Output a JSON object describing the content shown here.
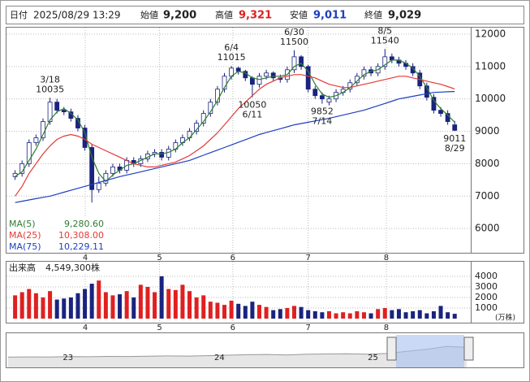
{
  "chart_data": {
    "type": "candlestick",
    "header": {
      "date_label": "日付",
      "date": "2025/08/29 13:29",
      "open_label": "始値",
      "open": "9,200",
      "high_label": "高値",
      "high": "9,321",
      "low_label": "安値",
      "low": "9,011",
      "close_label": "終値",
      "close": "9,029"
    },
    "xlim": [
      -1,
      65.3
    ],
    "xticks": [
      {
        "value": 10.05,
        "label": "4"
      },
      {
        "value": 20.7,
        "label": "5"
      },
      {
        "value": 31.2,
        "label": "6"
      },
      {
        "value": 42,
        "label": "7"
      },
      {
        "value": 53.2,
        "label": "8"
      }
    ],
    "ylim": [
      5250,
      12200
    ],
    "yticks": [
      6000,
      7000,
      8000,
      9000,
      10000,
      11000,
      12000
    ],
    "open": [
      7600,
      7700,
      8000,
      8650,
      8800,
      9300,
      9900,
      9650,
      9600,
      9400,
      9100,
      8500,
      7200,
      7400,
      7700,
      7900,
      7800,
      8100,
      8000,
      8150,
      8300,
      8350,
      8200,
      8450,
      8650,
      8800,
      9000,
      9250,
      9550,
      9900,
      10300,
      10700,
      10950,
      10850,
      10650,
      10450,
      10700,
      10800,
      10650,
      10600,
      10900,
      11300,
      11000,
      10300,
      10100,
      9900,
      10000,
      10200,
      10300,
      10500,
      10700,
      10900,
      10800,
      11000,
      11300,
      11200,
      11100,
      11000,
      10800,
      10400,
      10050,
      9650,
      9550,
      9200
    ],
    "high": [
      7800,
      8100,
      8750,
      8900,
      9400,
      10035,
      10000,
      9750,
      9700,
      9500,
      9200,
      8600,
      7600,
      7800,
      8000,
      8000,
      8200,
      8200,
      8250,
      8400,
      8450,
      8450,
      8550,
      8750,
      8900,
      9100,
      9350,
      9650,
      10000,
      10400,
      10800,
      11015,
      11000,
      10900,
      10700,
      10800,
      10900,
      10850,
      10750,
      11000,
      11500,
      11350,
      11050,
      10400,
      10200,
      10100,
      10300,
      10400,
      10600,
      10800,
      11000,
      11000,
      11100,
      11540,
      11400,
      11300,
      11200,
      11100,
      10900,
      10500,
      10150,
      9750,
      9650,
      9321
    ],
    "low": [
      7500,
      7600,
      7900,
      8550,
      8700,
      9200,
      9550,
      9500,
      9300,
      9000,
      8400,
      6800,
      7100,
      7300,
      7600,
      7700,
      7700,
      7900,
      7900,
      8050,
      8200,
      8100,
      8100,
      8350,
      8550,
      8700,
      8900,
      9150,
      9450,
      9800,
      10200,
      10600,
      10750,
      10550,
      10050,
      10350,
      10600,
      10550,
      10500,
      10500,
      10800,
      10900,
      10200,
      10000,
      9852,
      9800,
      9900,
      10100,
      10200,
      10400,
      10600,
      10700,
      10700,
      10900,
      11100,
      11000,
      10900,
      10700,
      10300,
      9950,
      9550,
      9450,
      9200,
      9011
    ],
    "close": [
      7700,
      8000,
      8650,
      8800,
      9300,
      9900,
      9650,
      9600,
      9400,
      9100,
      8500,
      7200,
      7400,
      7700,
      7900,
      7800,
      8100,
      8000,
      8150,
      8300,
      8350,
      8200,
      8450,
      8650,
      8800,
      9000,
      9250,
      9550,
      9900,
      10300,
      10700,
      10950,
      10850,
      10650,
      10450,
      10700,
      10800,
      10650,
      10600,
      10900,
      11300,
      11000,
      10300,
      10100,
      10000,
      10000,
      10200,
      10300,
      10500,
      10700,
      10900,
      10800,
      11000,
      11300,
      11200,
      11100,
      11000,
      10800,
      10400,
      10050,
      9650,
      9550,
      9300,
      9029
    ],
    "up_color": "#ffffff",
    "down_color": "#1a237e",
    "outline_color": "#1a237e",
    "series": [
      {
        "name": "MA(5)",
        "color": "#2e7d32",
        "current": {
          "value": 9280.6,
          "label": "9,280.60"
        },
        "values": [
          7600,
          7750,
          8100,
          8450,
          8900,
          9350,
          9600,
          9700,
          9550,
          9350,
          8950,
          8200,
          7700,
          7450,
          7650,
          7800,
          7950,
          8000,
          8100,
          8200,
          8300,
          8300,
          8350,
          8450,
          8650,
          8800,
          9050,
          9300,
          9600,
          9950,
          10350,
          10700,
          10850,
          10800,
          10650,
          10600,
          10650,
          10700,
          10700,
          10750,
          11000,
          11100,
          10850,
          10450,
          10150,
          10050,
          10100,
          10200,
          10350,
          10550,
          10750,
          10850,
          10900,
          11050,
          11200,
          11200,
          11100,
          10950,
          10700,
          10350,
          9950,
          9700,
          9500,
          9280.6
        ]
      },
      {
        "name": "MA(25)",
        "color": "#e53935",
        "current": {
          "value": 10308,
          "label": "10,308.00"
        },
        "values": [
          7000,
          7300,
          7700,
          8000,
          8300,
          8550,
          8750,
          8850,
          8900,
          8850,
          8750,
          8600,
          8500,
          8400,
          8300,
          8200,
          8100,
          8000,
          7950,
          7900,
          7900,
          7950,
          8000,
          8050,
          8150,
          8250,
          8400,
          8550,
          8750,
          8950,
          9200,
          9450,
          9700,
          9900,
          10100,
          10300,
          10450,
          10550,
          10650,
          10700,
          10750,
          10750,
          10700,
          10650,
          10550,
          10450,
          10400,
          10350,
          10350,
          10400,
          10450,
          10500,
          10550,
          10600,
          10650,
          10700,
          10700,
          10650,
          10600,
          10550,
          10500,
          10450,
          10380,
          10308
        ]
      },
      {
        "name": "MA(75)",
        "color": "#1e3fbf",
        "current": {
          "value": 10229.11,
          "label": "10,229.11"
        },
        "values": [
          6800,
          6840,
          6880,
          6920,
          6960,
          7000,
          7060,
          7120,
          7180,
          7240,
          7300,
          7360,
          7420,
          7480,
          7540,
          7600,
          7650,
          7700,
          7750,
          7800,
          7850,
          7900,
          7950,
          8000,
          8050,
          8100,
          8180,
          8260,
          8340,
          8420,
          8500,
          8580,
          8660,
          8740,
          8820,
          8900,
          8960,
          9020,
          9080,
          9140,
          9200,
          9240,
          9280,
          9320,
          9360,
          9400,
          9450,
          9500,
          9550,
          9600,
          9650,
          9720,
          9790,
          9860,
          9930,
          10000,
          10040,
          10080,
          10120,
          10160,
          10200,
          10210,
          10220,
          10229.11
        ]
      }
    ],
    "annotations": [
      {
        "date": "3/18",
        "value": 10035
      },
      {
        "date": "6/4",
        "value": 11015
      },
      {
        "date": "6/11",
        "value": 10050
      },
      {
        "date": "6/30",
        "value": 11500
      },
      {
        "date": "7/14",
        "value": 9852
      },
      {
        "date": "8/5",
        "value": 11540
      },
      {
        "date": "8/29",
        "value": 9011
      }
    ],
    "volume": {
      "title": "出来高",
      "current": "4,549,300株",
      "unit": "(万株)",
      "up_color": "#e02020",
      "down_color": "#1a237e",
      "ylim": [
        0,
        5380
      ],
      "yticks": [
        1000,
        2000,
        3000,
        4000
      ],
      "values": [
        2200,
        2500,
        2800,
        2400,
        2000,
        2600,
        1800,
        1900,
        2000,
        2400,
        2800,
        3300,
        3600,
        2500,
        2200,
        2300,
        2600,
        2000,
        3200,
        3000,
        2500,
        4000,
        2800,
        2700,
        3200,
        2600,
        2000,
        2200,
        1600,
        1500,
        1300,
        1700,
        1400,
        1200,
        1600,
        1300,
        1100,
        800,
        900,
        1000,
        1200,
        1100,
        800,
        700,
        600,
        700,
        500,
        600,
        500,
        700,
        600,
        500,
        900,
        1000,
        800,
        900,
        600,
        700,
        800,
        500,
        700,
        1200,
        600,
        454.93
      ]
    },
    "navigator": {
      "xlim": [
        0,
        23
      ],
      "ylim": [
        0,
        14000
      ],
      "xticks": [
        {
          "value": 3,
          "label": "23"
        },
        {
          "value": 10.6,
          "label": "24"
        },
        {
          "value": 18.3,
          "label": "25"
        }
      ],
      "values": [
        4200,
        4300,
        4250,
        4400,
        4350,
        4500,
        4450,
        4600,
        4700,
        4650,
        4800,
        5000,
        5200,
        5300,
        5100,
        5400,
        5500,
        5600,
        5400,
        5700,
        6600,
        7400,
        8600,
        8200
      ]
    }
  }
}
